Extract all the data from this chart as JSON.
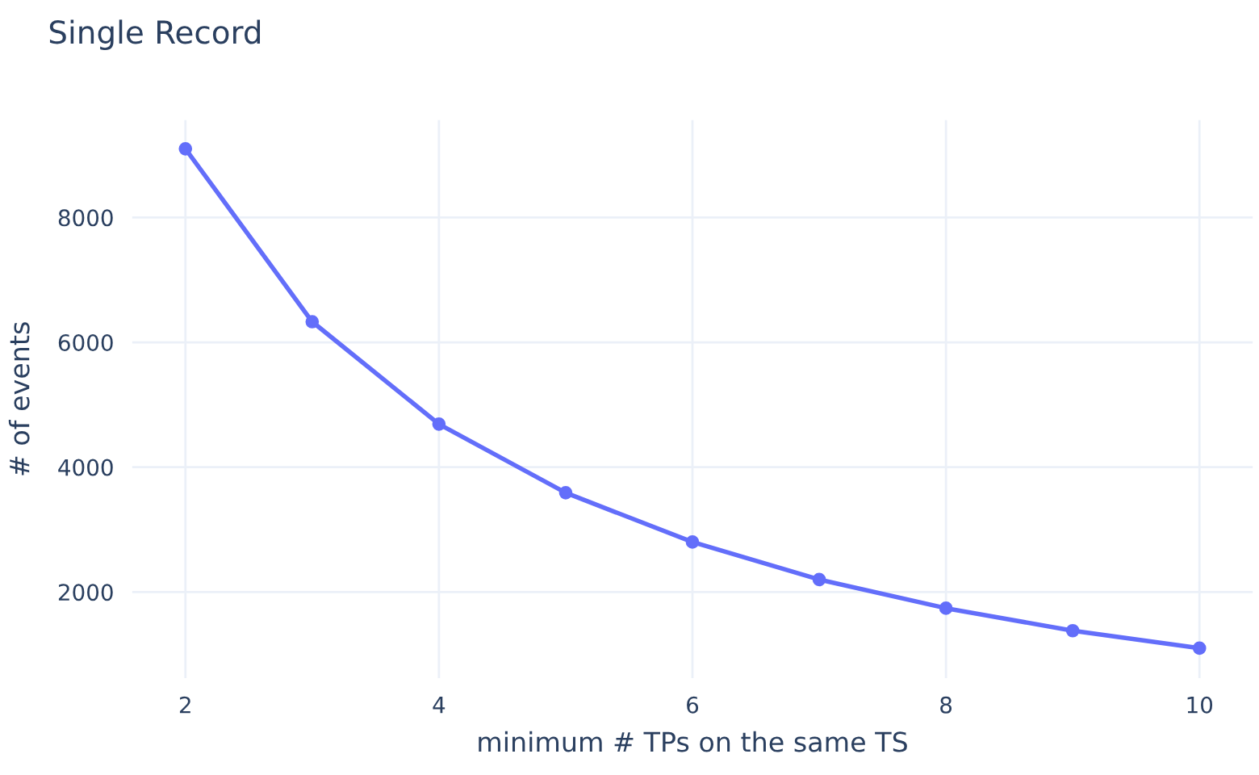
{
  "chart_data": {
    "type": "line",
    "title": "Single Record",
    "xlabel": "minimum # TPs on the same TS",
    "ylabel": "# of events",
    "x": [
      2,
      3,
      4,
      5,
      6,
      7,
      8,
      9,
      10
    ],
    "series": [
      {
        "color": "#636efa",
        "values": [
          9100,
          6330,
          4690,
          3590,
          2800,
          2200,
          1740,
          1380,
          1100
        ]
      }
    ],
    "xlim": [
      1.58,
      10.42
    ],
    "xticks": [
      2,
      4,
      6,
      8,
      10
    ],
    "ylim": [
      620,
      9560
    ],
    "yticks": [
      2000,
      4000,
      6000,
      8000
    ],
    "grid": true,
    "marker": "circle",
    "line_style": "solid"
  }
}
